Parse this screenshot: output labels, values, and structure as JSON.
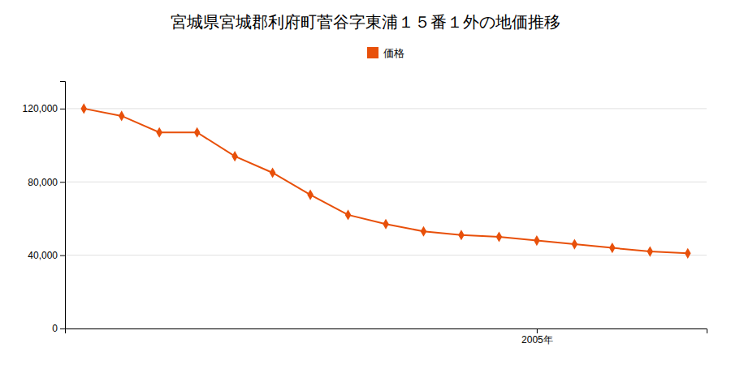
{
  "chart_data": {
    "type": "line",
    "title": "宮城県宮城郡利府町菅谷字東浦１５番１外の地価推移",
    "x": [
      1993,
      1994,
      1995,
      1996,
      1997,
      1998,
      1999,
      2000,
      2001,
      2002,
      2003,
      2004,
      2005,
      2006,
      2007,
      2008,
      2009
    ],
    "series": [
      {
        "name": "価格",
        "color": "#e8500a",
        "marker": "diamond",
        "line_style": "solid",
        "values": [
          120000,
          116000,
          107000,
          107000,
          94000,
          85000,
          73000,
          62000,
          57000,
          53000,
          51000,
          50000,
          48000,
          46000,
          44000,
          42000,
          41000
        ]
      }
    ],
    "xlim": [
      1992.5,
      2009.5
    ],
    "xticks": [
      {
        "value": 2005,
        "label": "2005年"
      }
    ],
    "ylim": [
      0,
      135000
    ],
    "yticks": [
      0,
      {
        "value": 40000,
        "label": "40,000"
      },
      {
        "value": 80000,
        "label": "80,000"
      },
      {
        "value": 120000,
        "label": "120,000"
      }
    ],
    "grid": "y",
    "legend": "top"
  }
}
